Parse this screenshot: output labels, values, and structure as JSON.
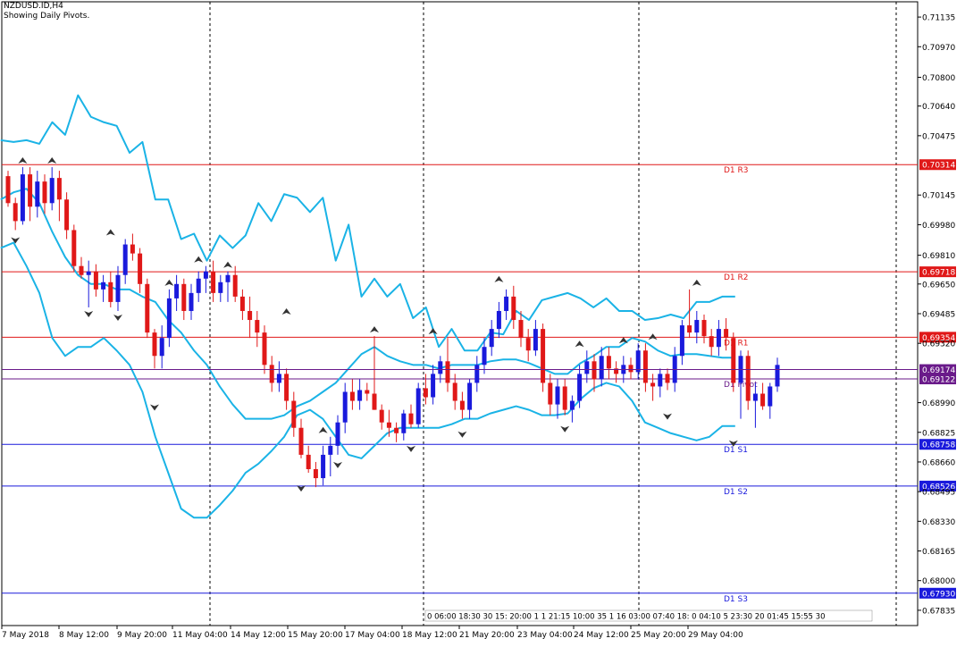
{
  "header": {
    "symbol": "NZDUSD.ID,H4",
    "subtitle": "Showing Daily Pivots."
  },
  "colors": {
    "bull": "#1a1adc",
    "bear": "#e01818",
    "bands": "#1ab3e6",
    "resistance": "#e01818",
    "support": "#1a1adc",
    "pivot": "#6a1a8a",
    "frame": "#000000"
  },
  "chart_data": {
    "type": "candlestick",
    "title": "NZDUSD.ID,H4",
    "subtitle": "Showing Daily Pivots.",
    "ylim": [
      0.6775,
      0.7122
    ],
    "y_ticks": [
      0.71135,
      0.7097,
      0.708,
      0.7064,
      0.70475,
      0.70314,
      0.70145,
      0.6998,
      0.6981,
      0.69718,
      0.6965,
      0.69485,
      0.69354,
      0.6932,
      0.69174,
      0.69122,
      0.6899,
      0.68825,
      0.68758,
      0.6866,
      0.68526,
      0.68495,
      0.6833,
      0.68165,
      0.68,
      0.6793,
      0.67835
    ],
    "y_tick_labels": [
      "0.71135",
      "0.70970",
      "0.70800",
      "0.70640",
      "0.70475",
      "0.70314",
      "0.70145",
      "0.69980",
      "0.69810",
      "0.69718",
      "0.69650",
      "0.69485",
      "0.69354",
      "0.69320",
      "0.69174",
      "0.69122",
      "0.68990",
      "0.68825",
      "0.68758",
      "0.68660",
      "0.68526",
      "0.68495",
      "0.68330",
      "0.68165",
      "0.68000",
      "0.67930",
      "0.67835"
    ],
    "x_labels": [
      "7 May 2018",
      "8 May 12:00",
      "9 May 20:00",
      "11 May 04:00",
      "14 May 12:00",
      "15 May 20:00",
      "17 May 04:00",
      "18 May 12:00",
      "21 May 20:00",
      "23 May 04:00",
      "24 May 12:00",
      "25 May 20:00",
      "29 May 04:00"
    ],
    "time_overlay": "0 06:00 18:30 30 15: 20:00  1 1 21:15 10:00 35 1 16 03:00  07:40 18: 0 04:10 5 23:30  20 01:45 15:55 30",
    "pivots": [
      {
        "name": "D1 R3",
        "value": 0.70314,
        "kind": "resistance"
      },
      {
        "name": "D1 R2",
        "value": 0.69718,
        "kind": "resistance"
      },
      {
        "name": "D1 R1",
        "value": 0.69354,
        "kind": "resistance"
      },
      {
        "name": "D1 Pivot",
        "value": 0.69122,
        "kind": "pivot"
      },
      {
        "name": "D1 S1",
        "value": 0.68758,
        "kind": "support"
      },
      {
        "name": "D1 S2",
        "value": 0.68526,
        "kind": "support"
      },
      {
        "name": "D1 S3",
        "value": 0.6793,
        "kind": "support"
      }
    ],
    "current_price": 0.69174,
    "candles": [
      [
        0.7025,
        0.7028,
        0.7008,
        0.701
      ],
      [
        0.701,
        0.7013,
        0.6995,
        0.7
      ],
      [
        0.7,
        0.703,
        0.6998,
        0.7026
      ],
      [
        0.7026,
        0.703,
        0.7,
        0.7008
      ],
      [
        0.7008,
        0.7028,
        0.7002,
        0.7022
      ],
      [
        0.7022,
        0.7026,
        0.7004,
        0.701
      ],
      [
        0.701,
        0.703,
        0.7006,
        0.7024
      ],
      [
        0.7024,
        0.7028,
        0.7,
        0.7012
      ],
      [
        0.7012,
        0.7016,
        0.699,
        0.6995
      ],
      [
        0.6995,
        0.6998,
        0.6972,
        0.6975
      ],
      [
        0.6975,
        0.698,
        0.6968,
        0.697
      ],
      [
        0.697,
        0.6978,
        0.6952,
        0.6972
      ],
      [
        0.6972,
        0.6976,
        0.6958,
        0.6962
      ],
      [
        0.6962,
        0.697,
        0.6955,
        0.6966
      ],
      [
        0.6966,
        0.6972,
        0.6952,
        0.6955
      ],
      [
        0.6955,
        0.6975,
        0.695,
        0.697
      ],
      [
        0.697,
        0.699,
        0.6965,
        0.6987
      ],
      [
        0.6987,
        0.6993,
        0.6978,
        0.6982
      ],
      [
        0.6982,
        0.6985,
        0.696,
        0.6965
      ],
      [
        0.6965,
        0.6968,
        0.6935,
        0.6938
      ],
      [
        0.6938,
        0.694,
        0.6918,
        0.6925
      ],
      [
        0.6925,
        0.6942,
        0.6918,
        0.6935
      ],
      [
        0.6935,
        0.6962,
        0.693,
        0.6957
      ],
      [
        0.6957,
        0.697,
        0.695,
        0.6965
      ],
      [
        0.6965,
        0.6968,
        0.6945,
        0.695
      ],
      [
        0.695,
        0.6965,
        0.6945,
        0.696
      ],
      [
        0.696,
        0.6972,
        0.6955,
        0.6968
      ],
      [
        0.6968,
        0.6975,
        0.696,
        0.6972
      ],
      [
        0.6972,
        0.6978,
        0.6955,
        0.696
      ],
      [
        0.696,
        0.697,
        0.6955,
        0.6966
      ],
      [
        0.6966,
        0.6972,
        0.6955,
        0.697
      ],
      [
        0.697,
        0.6975,
        0.6955,
        0.6958
      ],
      [
        0.6958,
        0.6962,
        0.6945,
        0.695
      ],
      [
        0.695,
        0.6958,
        0.6935,
        0.6945
      ],
      [
        0.6945,
        0.695,
        0.693,
        0.6938
      ],
      [
        0.6938,
        0.6942,
        0.6915,
        0.692
      ],
      [
        0.692,
        0.6925,
        0.6905,
        0.691
      ],
      [
        0.691,
        0.6922,
        0.6905,
        0.6915
      ],
      [
        0.6915,
        0.6918,
        0.6895,
        0.69
      ],
      [
        0.69,
        0.6905,
        0.688,
        0.6885
      ],
      [
        0.6885,
        0.689,
        0.6868,
        0.687
      ],
      [
        0.687,
        0.6875,
        0.686,
        0.6862
      ],
      [
        0.6862,
        0.6866,
        0.6852,
        0.6857
      ],
      [
        0.6857,
        0.6875,
        0.6853,
        0.687
      ],
      [
        0.687,
        0.688,
        0.6858,
        0.6875
      ],
      [
        0.6875,
        0.6892,
        0.687,
        0.6888
      ],
      [
        0.6888,
        0.691,
        0.6882,
        0.6905
      ],
      [
        0.6905,
        0.6912,
        0.6895,
        0.69
      ],
      [
        0.69,
        0.6912,
        0.6895,
        0.6906
      ],
      [
        0.6906,
        0.691,
        0.69,
        0.6904
      ],
      [
        0.6904,
        0.6936,
        0.6895,
        0.6895
      ],
      [
        0.6895,
        0.6898,
        0.6884,
        0.6888
      ],
      [
        0.6888,
        0.6895,
        0.688,
        0.6885
      ],
      [
        0.6885,
        0.6888,
        0.6877,
        0.6882
      ],
      [
        0.6882,
        0.6895,
        0.6878,
        0.6893
      ],
      [
        0.6893,
        0.6898,
        0.6885,
        0.6887
      ],
      [
        0.6887,
        0.691,
        0.6885,
        0.6907
      ],
      [
        0.6907,
        0.6915,
        0.6898,
        0.6902
      ],
      [
        0.6902,
        0.692,
        0.6898,
        0.6915
      ],
      [
        0.6915,
        0.6925,
        0.691,
        0.6922
      ],
      [
        0.6922,
        0.6935,
        0.6905,
        0.691
      ],
      [
        0.691,
        0.6915,
        0.6895,
        0.69
      ],
      [
        0.69,
        0.6905,
        0.689,
        0.6895
      ],
      [
        0.6895,
        0.6912,
        0.689,
        0.691
      ],
      [
        0.691,
        0.6925,
        0.6905,
        0.692
      ],
      [
        0.692,
        0.6935,
        0.6915,
        0.693
      ],
      [
        0.693,
        0.6945,
        0.6925,
        0.694
      ],
      [
        0.694,
        0.6955,
        0.6935,
        0.695
      ],
      [
        0.695,
        0.6962,
        0.6945,
        0.6958
      ],
      [
        0.6958,
        0.6964,
        0.694,
        0.6945
      ],
      [
        0.6945,
        0.695,
        0.693,
        0.6935
      ],
      [
        0.6935,
        0.694,
        0.6922,
        0.6928
      ],
      [
        0.6928,
        0.6945,
        0.6925,
        0.694
      ],
      [
        0.694,
        0.6943,
        0.6905,
        0.691
      ],
      [
        0.691,
        0.6915,
        0.6892,
        0.6898
      ],
      [
        0.6898,
        0.6912,
        0.689,
        0.6908
      ],
      [
        0.6908,
        0.6912,
        0.6892,
        0.6895
      ],
      [
        0.6895,
        0.6903,
        0.6888,
        0.69
      ],
      [
        0.69,
        0.692,
        0.6896,
        0.6915
      ],
      [
        0.6915,
        0.6928,
        0.691,
        0.6922
      ],
      [
        0.6922,
        0.6926,
        0.6905,
        0.6912
      ],
      [
        0.6912,
        0.693,
        0.6908,
        0.6925
      ],
      [
        0.6925,
        0.693,
        0.6912,
        0.6918
      ],
      [
        0.6918,
        0.6922,
        0.691,
        0.6915
      ],
      [
        0.6915,
        0.6925,
        0.691,
        0.692
      ],
      [
        0.692,
        0.6924,
        0.6912,
        0.6916
      ],
      [
        0.6916,
        0.6932,
        0.6912,
        0.6928
      ],
      [
        0.6928,
        0.6932,
        0.6905,
        0.691
      ],
      [
        0.691,
        0.6915,
        0.69,
        0.6908
      ],
      [
        0.6908,
        0.6918,
        0.6902,
        0.6915
      ],
      [
        0.6915,
        0.6918,
        0.6906,
        0.691
      ],
      [
        0.691,
        0.693,
        0.6905,
        0.6925
      ],
      [
        0.6925,
        0.6945,
        0.692,
        0.6942
      ],
      [
        0.6942,
        0.6962,
        0.6935,
        0.6938
      ],
      [
        0.6938,
        0.695,
        0.6932,
        0.6945
      ],
      [
        0.6945,
        0.6948,
        0.6932,
        0.6936
      ],
      [
        0.6936,
        0.694,
        0.6925,
        0.693
      ],
      [
        0.693,
        0.6945,
        0.6925,
        0.694
      ],
      [
        0.694,
        0.6946,
        0.6928,
        0.6935
      ],
      [
        0.6935,
        0.6938,
        0.6905,
        0.691
      ],
      [
        0.691,
        0.6928,
        0.689,
        0.6925
      ],
      [
        0.6925,
        0.6928,
        0.6895,
        0.69
      ],
      [
        0.69,
        0.691,
        0.6885,
        0.6904
      ],
      [
        0.6904,
        0.691,
        0.6895,
        0.6897
      ],
      [
        0.6897,
        0.691,
        0.689,
        0.6908
      ],
      [
        0.6908,
        0.6924,
        0.6905,
        0.692
      ]
    ],
    "upper_band": [
      [
        0.7045,
        0.7044
      ],
      [
        0.7045,
        0.7043
      ],
      [
        0.7055,
        0.7048
      ],
      [
        0.707,
        0.7058
      ],
      [
        0.7055,
        0.7053
      ],
      [
        0.7038,
        0.7044
      ],
      [
        0.7012,
        0.7012
      ],
      [
        0.699,
        0.6993
      ],
      [
        0.6978,
        0.6992
      ],
      [
        0.6985,
        0.6992
      ],
      [
        0.701,
        0.7
      ],
      [
        0.7015,
        0.7013
      ],
      [
        0.7005,
        0.7013
      ],
      [
        0.6978,
        0.6998
      ],
      [
        0.6958,
        0.6968
      ],
      [
        0.6958,
        0.6965
      ],
      [
        0.6946,
        0.6952
      ],
      [
        0.693,
        0.694
      ],
      [
        0.6928,
        0.6928
      ],
      [
        0.6938,
        0.6937
      ],
      [
        0.695,
        0.6945
      ],
      [
        0.6956,
        0.6958
      ],
      [
        0.696,
        0.6957
      ],
      [
        0.6952,
        0.6957
      ],
      [
        0.695,
        0.695
      ],
      [
        0.6945,
        0.6946
      ],
      [
        0.6948,
        0.6946
      ],
      [
        0.6955,
        0.6955
      ],
      [
        0.6958,
        0.6958
      ]
    ],
    "middle_band": [
      [
        0.7012,
        0.7016
      ],
      [
        0.7018,
        0.701
      ],
      [
        0.6994,
        0.698
      ],
      [
        0.697,
        0.6965
      ],
      [
        0.6965,
        0.6962
      ],
      [
        0.6962,
        0.6958
      ],
      [
        0.6955,
        0.6945
      ],
      [
        0.6938,
        0.6928
      ],
      [
        0.692,
        0.6908
      ],
      [
        0.6898,
        0.689
      ],
      [
        0.689,
        0.689
      ],
      [
        0.6892,
        0.6897
      ],
      [
        0.69,
        0.6905
      ],
      [
        0.691,
        0.6918
      ],
      [
        0.6926,
        0.693
      ],
      [
        0.6925,
        0.6922
      ],
      [
        0.692,
        0.692
      ],
      [
        0.6918,
        0.692
      ],
      [
        0.692,
        0.692
      ],
      [
        0.6922,
        0.6923
      ],
      [
        0.6923,
        0.6921
      ],
      [
        0.6918,
        0.6915
      ],
      [
        0.6915,
        0.6921
      ],
      [
        0.6925,
        0.693
      ],
      [
        0.693,
        0.6935
      ],
      [
        0.6933,
        0.6928
      ],
      [
        0.6925,
        0.6926
      ],
      [
        0.6926,
        0.6925
      ],
      [
        0.6924,
        0.6924
      ]
    ],
    "lower_band": [
      [
        0.6985,
        0.6988
      ],
      [
        0.6975,
        0.696
      ],
      [
        0.6935,
        0.6925
      ],
      [
        0.693,
        0.693
      ],
      [
        0.6935,
        0.6928
      ],
      [
        0.692,
        0.6905
      ],
      [
        0.688,
        0.686
      ],
      [
        0.684,
        0.6835
      ],
      [
        0.6835,
        0.6842
      ],
      [
        0.685,
        0.686
      ],
      [
        0.6865,
        0.6872
      ],
      [
        0.688,
        0.6892
      ],
      [
        0.6895,
        0.689
      ],
      [
        0.688,
        0.687
      ],
      [
        0.6868,
        0.6875
      ],
      [
        0.6882,
        0.6885
      ],
      [
        0.6885,
        0.6885
      ],
      [
        0.6885,
        0.6887
      ],
      [
        0.689,
        0.689
      ],
      [
        0.6893,
        0.6895
      ],
      [
        0.6897,
        0.6895
      ],
      [
        0.6892,
        0.6892
      ],
      [
        0.6893,
        0.6901
      ],
      [
        0.6907,
        0.691
      ],
      [
        0.6908,
        0.69
      ],
      [
        0.6888,
        0.6885
      ],
      [
        0.6882,
        0.688
      ],
      [
        0.6878,
        0.688
      ],
      [
        0.6886,
        0.6886
      ]
    ],
    "fractals_up": [
      [
        2,
        0.703
      ],
      [
        6,
        0.703
      ],
      [
        14,
        0.699
      ],
      [
        22,
        0.6962
      ],
      [
        26,
        0.6975
      ],
      [
        30,
        0.6972
      ],
      [
        38,
        0.6946
      ],
      [
        43,
        0.688
      ],
      [
        50,
        0.6936
      ],
      [
        58,
        0.6935
      ],
      [
        67,
        0.6964
      ],
      [
        78,
        0.6928
      ],
      [
        84,
        0.693
      ],
      [
        88,
        0.6932
      ],
      [
        94,
        0.6962
      ]
    ],
    "fractals_down": [
      [
        1,
        0.6993
      ],
      [
        11,
        0.6952
      ],
      [
        15,
        0.695
      ],
      [
        20,
        0.69
      ],
      [
        40,
        0.6855
      ],
      [
        45,
        0.6868
      ],
      [
        55,
        0.6877
      ],
      [
        62,
        0.6885
      ],
      [
        76,
        0.6888
      ],
      [
        90,
        0.6895
      ],
      [
        99,
        0.688
      ]
    ]
  }
}
